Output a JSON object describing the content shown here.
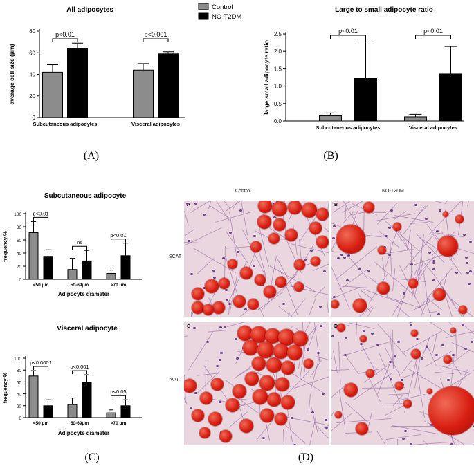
{
  "legend": {
    "series": [
      "Control",
      "NO-T2DM"
    ],
    "colors": [
      "#8c8c8c",
      "#000000"
    ]
  },
  "chart_data": [
    {
      "panel": "(A)",
      "type": "bar",
      "title": "All adipocytes",
      "ylabel": "average cell size (μm)",
      "xlabel": "",
      "ylim": [
        0,
        80
      ],
      "yticks": [
        "0",
        "20",
        "40",
        "60",
        "80"
      ],
      "categories": [
        "Subcutaneous adipocytes",
        "Visceral adipocytes"
      ],
      "series": [
        {
          "name": "Control",
          "values": [
            42,
            44
          ],
          "errors": [
            7,
            6
          ]
        },
        {
          "name": "NO-T2DM",
          "values": [
            64,
            59
          ],
          "errors": [
            5,
            2
          ]
        }
      ],
      "annotations": [
        "p<0.01",
        "p<0.001"
      ]
    },
    {
      "panel": "(B)",
      "type": "bar",
      "title": "Large to small adipocyte ratio",
      "ylabel": "large:small adipocyte ratio",
      "xlabel": "",
      "ylim": [
        0,
        2.5
      ],
      "yticks": [
        "0.0",
        "0.5",
        "1.0",
        "1.5",
        "2.0",
        "2.5"
      ],
      "categories": [
        "Subcutaneous adipocytes",
        "Visceral adipocytes"
      ],
      "series": [
        {
          "name": "Control",
          "values": [
            0.15,
            0.12
          ],
          "errors": [
            0.08,
            0.07
          ]
        },
        {
          "name": "NO-T2DM",
          "values": [
            1.22,
            1.35
          ],
          "errors": [
            1.13,
            0.79
          ]
        }
      ],
      "annotations": [
        "p<0.01",
        "p<0.01"
      ]
    },
    {
      "panel": "(C)",
      "type": "bar",
      "title": "Subcutaneous adipocyte",
      "ylabel": "frequency %",
      "xlabel": "Adipocyte diameter",
      "ylim": [
        0,
        100
      ],
      "yticks": [
        "0",
        "20",
        "40",
        "60",
        "80",
        "100"
      ],
      "categories": [
        "<50 μm",
        "50-69μm",
        ">70 μm"
      ],
      "series": [
        {
          "name": "Control",
          "values": [
            71,
            15,
            9
          ],
          "errors": [
            17,
            17,
            5
          ]
        },
        {
          "name": "NO-T2DM",
          "values": [
            35,
            28,
            36
          ],
          "errors": [
            10,
            16,
            19
          ]
        }
      ],
      "annotations": [
        "p<0.01",
        "ns",
        "p<0.01"
      ]
    },
    {
      "panel": "(C)",
      "type": "bar",
      "title": "Visceral adipocyte",
      "ylabel": "frequency %",
      "xlabel": "Adipocyte diameter",
      "ylim": [
        0,
        100
      ],
      "yticks": [
        "0",
        "20",
        "40",
        "60",
        "80",
        "100"
      ],
      "categories": [
        "<50 μm",
        "50-69μm",
        ">70 μm"
      ],
      "series": [
        {
          "name": "Control",
          "values": [
            70,
            22,
            8
          ],
          "errors": [
            9,
            11,
            5
          ]
        },
        {
          "name": "NO-T2DM",
          "values": [
            20,
            59,
            20
          ],
          "errors": [
            10,
            13,
            10
          ]
        }
      ],
      "annotations": [
        "p<0.0001",
        "p<0.001",
        "p<0.05"
      ]
    }
  ],
  "panel_d": {
    "column_headers": [
      "Control",
      "NO-T2DM"
    ],
    "row_labels": [
      "SCAT",
      "VAT"
    ],
    "tile_letters": [
      "A",
      "B",
      "C",
      "D"
    ]
  },
  "panel_labels": [
    "(A)",
    "(B)",
    "(C)",
    "(D)"
  ]
}
